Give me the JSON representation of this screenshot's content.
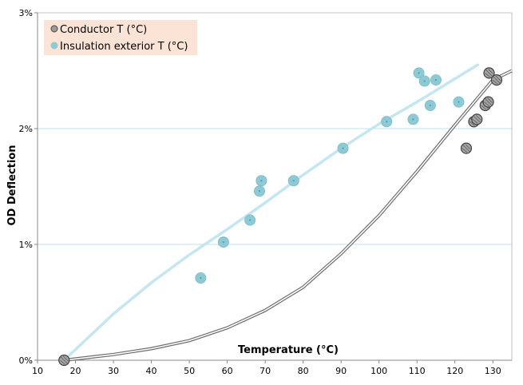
{
  "chart_data": {
    "type": "scatter",
    "title": "",
    "xlabel": "Temperature  (°C)",
    "ylabel": "OD Deflection",
    "xlim": [
      10,
      135
    ],
    "ylim": [
      0,
      3
    ],
    "x_ticks": [
      10,
      20,
      30,
      40,
      50,
      60,
      70,
      80,
      90,
      100,
      110,
      120,
      130
    ],
    "y_ticks": [
      0,
      1,
      2,
      3
    ],
    "y_tick_labels": [
      "0%",
      "1%",
      "2%",
      "3%"
    ],
    "grid": "horizontal",
    "legend_position": "top-left",
    "series": [
      {
        "name": "Conductor T (°C)",
        "color": "#8c8c8c",
        "points": [
          {
            "x": 17,
            "y": 0.0
          },
          {
            "x": 123,
            "y": 1.83
          },
          {
            "x": 125,
            "y": 2.06
          },
          {
            "x": 125.8,
            "y": 2.08
          },
          {
            "x": 128,
            "y": 2.2
          },
          {
            "x": 128.8,
            "y": 2.23
          },
          {
            "x": 129,
            "y": 2.48
          },
          {
            "x": 131,
            "y": 2.42
          }
        ],
        "trend": [
          {
            "x": 17,
            "y": 0.0
          },
          {
            "x": 30,
            "y": 0.05
          },
          {
            "x": 40,
            "y": 0.1
          },
          {
            "x": 50,
            "y": 0.17
          },
          {
            "x": 60,
            "y": 0.28
          },
          {
            "x": 70,
            "y": 0.43
          },
          {
            "x": 80,
            "y": 0.63
          },
          {
            "x": 90,
            "y": 0.92
          },
          {
            "x": 100,
            "y": 1.25
          },
          {
            "x": 110,
            "y": 1.63
          },
          {
            "x": 120,
            "y": 2.03
          },
          {
            "x": 130,
            "y": 2.42
          },
          {
            "x": 135,
            "y": 2.5
          }
        ]
      },
      {
        "name": "Insulation exterior T (°C)",
        "color": "#8ecad6",
        "points": [
          {
            "x": 17,
            "y": 0.0
          },
          {
            "x": 53,
            "y": 0.71
          },
          {
            "x": 59,
            "y": 1.02
          },
          {
            "x": 66,
            "y": 1.21
          },
          {
            "x": 68.5,
            "y": 1.46
          },
          {
            "x": 69,
            "y": 1.55
          },
          {
            "x": 77.5,
            "y": 1.55
          },
          {
            "x": 90.5,
            "y": 1.83
          },
          {
            "x": 102,
            "y": 2.06
          },
          {
            "x": 109,
            "y": 2.08
          },
          {
            "x": 110.5,
            "y": 2.48
          },
          {
            "x": 112,
            "y": 2.41
          },
          {
            "x": 113.5,
            "y": 2.2
          },
          {
            "x": 115,
            "y": 2.42
          },
          {
            "x": 121,
            "y": 2.23
          }
        ],
        "trend": [
          {
            "x": 17,
            "y": 0.0
          },
          {
            "x": 30,
            "y": 0.4
          },
          {
            "x": 40,
            "y": 0.67
          },
          {
            "x": 50,
            "y": 0.91
          },
          {
            "x": 60,
            "y": 1.13
          },
          {
            "x": 70,
            "y": 1.36
          },
          {
            "x": 80,
            "y": 1.6
          },
          {
            "x": 90,
            "y": 1.83
          },
          {
            "x": 100,
            "y": 2.04
          },
          {
            "x": 110,
            "y": 2.23
          },
          {
            "x": 120,
            "y": 2.43
          },
          {
            "x": 126,
            "y": 2.55
          }
        ]
      }
    ]
  },
  "colors": {
    "grid": "#bfe2ea",
    "axis": "#888888",
    "legend_bg": "#fbe4d5",
    "conductor_marker": "#8c8c8c",
    "insulation_marker": "#8ecad6",
    "insulation_trend": "#c4e6f1",
    "conductor_trend": "#6e6e6e"
  }
}
